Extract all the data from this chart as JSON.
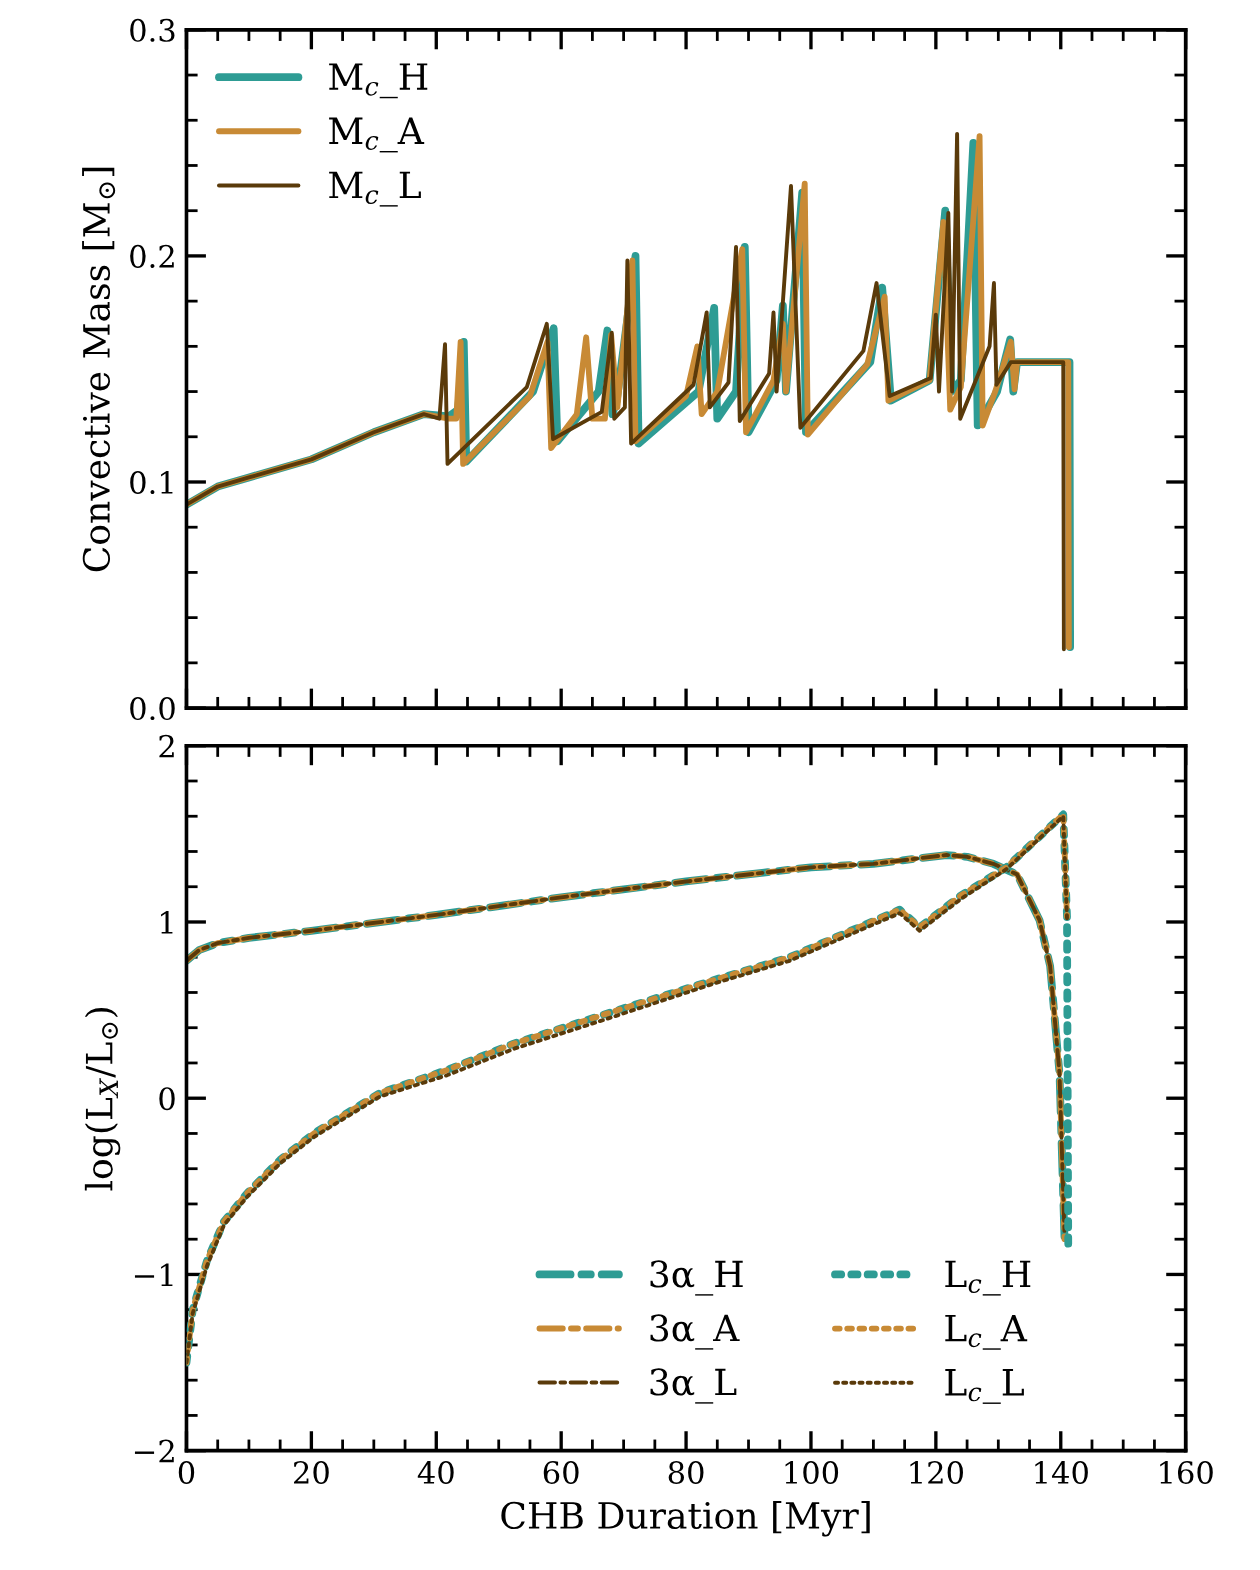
{
  "chart_data": [
    {
      "type": "line",
      "ylabel": "Convective Mass [M$_{⊙}$]",
      "xlim": [
        0,
        160
      ],
      "ylim": [
        0,
        0.3
      ],
      "xticks": [
        0,
        20,
        40,
        60,
        80,
        100,
        120,
        140,
        160
      ],
      "yticks": [
        {
          "value": 0,
          "label": "0.0"
        },
        0.1,
        0.2,
        0.3
      ],
      "tick_labels": "y",
      "legend": "top left",
      "grid": false,
      "line_style": "solid",
      "series": [
        {
          "name": "M$_{c}$_H",
          "color": "#2e9c94",
          "x": [
            0,
            5,
            10,
            20,
            30,
            38,
            42,
            43.5,
            44.4,
            44.8,
            55.5,
            58.8,
            59.4,
            66,
            67.4,
            68.2,
            68.9,
            71.9,
            72.4,
            82,
            84.5,
            85,
            88,
            89.4,
            90,
            94.5,
            95.5,
            96,
            98.6,
            99.2,
            109.5,
            111.4,
            112.8,
            119,
            121.5,
            122.5,
            124,
            126,
            126.7,
            129.8,
            131.9,
            132.4,
            133,
            141.4,
            141.5
          ],
          "values": [
            0.09,
            0.098,
            0.102,
            0.11,
            0.122,
            0.13,
            0.129,
            0.132,
            0.162,
            0.109,
            0.14,
            0.168,
            0.118,
            0.14,
            0.167,
            0.13,
            0.136,
            0.2,
            0.117,
            0.14,
            0.177,
            0.128,
            0.14,
            0.204,
            0.122,
            0.145,
            0.178,
            0.14,
            0.228,
            0.122,
            0.153,
            0.186,
            0.136,
            0.145,
            0.22,
            0.14,
            0.145,
            0.25,
            0.125,
            0.14,
            0.163,
            0.14,
            0.153,
            0.153,
            0.027
          ]
        },
        {
          "name": "M$_{c}$_A",
          "color": "#c88a35",
          "x": [
            0,
            5,
            10,
            20,
            30,
            38,
            42,
            43.2,
            43.9,
            44.3,
            55,
            57.8,
            58.4,
            62.5,
            64,
            65,
            67,
            68,
            69,
            71.4,
            71.9,
            80,
            81.8,
            82.5,
            85,
            89,
            89.6,
            94,
            95.5,
            96,
            99,
            99.5,
            109,
            111.8,
            112.4,
            119,
            121.2,
            122.3,
            124,
            127,
            127.5,
            129.5,
            132,
            132.6,
            133,
            141.2,
            141.3
          ],
          "values": [
            0.09,
            0.098,
            0.102,
            0.11,
            0.122,
            0.13,
            0.128,
            0.128,
            0.162,
            0.108,
            0.138,
            0.162,
            0.115,
            0.13,
            0.164,
            0.128,
            0.128,
            0.165,
            0.133,
            0.198,
            0.118,
            0.138,
            0.16,
            0.13,
            0.14,
            0.203,
            0.122,
            0.145,
            0.17,
            0.14,
            0.232,
            0.121,
            0.152,
            0.182,
            0.136,
            0.145,
            0.215,
            0.132,
            0.142,
            0.253,
            0.125,
            0.14,
            0.162,
            0.141,
            0.153,
            0.153,
            0.027
          ]
        },
        {
          "name": "M$_{c}$_L",
          "color": "#5a3a0a",
          "x": [
            0,
            5,
            10,
            20,
            30,
            38,
            40.5,
            41.4,
            41.8,
            54.5,
            57.7,
            58.7,
            66.5,
            68.1,
            68.5,
            70.2,
            70.6,
            71.2,
            81.2,
            83.3,
            83.8,
            86.8,
            88,
            88.6,
            93.3,
            94,
            94.5,
            96.8,
            98.3,
            108.4,
            110.5,
            112.6,
            119.2,
            120,
            120.5,
            122,
            122.6,
            123.4,
            123.9,
            128.6,
            129.3,
            129.7,
            132,
            140.4,
            140.5
          ],
          "values": [
            0.09,
            0.098,
            0.102,
            0.11,
            0.122,
            0.13,
            0.128,
            0.161,
            0.108,
            0.142,
            0.17,
            0.119,
            0.131,
            0.166,
            0.128,
            0.133,
            0.198,
            0.117,
            0.143,
            0.175,
            0.133,
            0.144,
            0.204,
            0.127,
            0.148,
            0.175,
            0.14,
            0.231,
            0.124,
            0.158,
            0.188,
            0.138,
            0.146,
            0.174,
            0.14,
            0.219,
            0.14,
            0.254,
            0.128,
            0.16,
            0.188,
            0.143,
            0.153,
            0.153,
            0.026
          ]
        }
      ]
    },
    {
      "type": "line",
      "xlabel": "CHB Duration [Myr]",
      "ylabel": "log(L$_{X}$/L$_{⊙}$)",
      "xlim": [
        0,
        160
      ],
      "ylim": [
        -2,
        2
      ],
      "xticks": [
        0,
        20,
        40,
        60,
        80,
        100,
        120,
        140,
        160
      ],
      "yticks": [
        {
          "value": -2,
          "label": "−2"
        },
        {
          "value": -1,
          "label": "−1"
        },
        0,
        1,
        2
      ],
      "legend": "bottom",
      "grid": false,
      "series": [
        {
          "name": "3α_H",
          "color": "#2e9c94",
          "line_style": "dashdot",
          "x": [
            0,
            2,
            5,
            10,
            20,
            40,
            60,
            80,
            100,
            110,
            121.7,
            125,
            129.2,
            133,
            136.6,
            138.3,
            139.8,
            140.6
          ],
          "values": [
            0.78,
            0.84,
            0.88,
            0.91,
            0.95,
            1.04,
            1.14,
            1.23,
            1.31,
            1.33,
            1.38,
            1.37,
            1.33,
            1.27,
            1.01,
            0.75,
            0.14,
            -0.8
          ]
        },
        {
          "name": "3α_A",
          "color": "#c88a35",
          "line_style": "dashdot",
          "x": [
            0,
            2,
            5,
            10,
            20,
            40,
            60,
            80,
            100,
            110,
            121.7,
            125,
            129.2,
            133,
            136.6,
            138.3,
            139.8,
            140.6
          ],
          "values": [
            0.78,
            0.84,
            0.88,
            0.91,
            0.95,
            1.04,
            1.14,
            1.23,
            1.31,
            1.33,
            1.38,
            1.37,
            1.33,
            1.27,
            1.01,
            0.75,
            0.14,
            -0.8
          ]
        },
        {
          "name": "3α_L",
          "color": "#5a3a0a",
          "line_style": "dashdot",
          "x": [
            0,
            2,
            5,
            10,
            20,
            40,
            60,
            80,
            100,
            110,
            121.7,
            125,
            129.2,
            133,
            136.6,
            138.3,
            139.8,
            140.6
          ],
          "values": [
            0.78,
            0.84,
            0.88,
            0.91,
            0.95,
            1.04,
            1.14,
            1.23,
            1.31,
            1.33,
            1.38,
            1.37,
            1.33,
            1.27,
            1.01,
            0.75,
            0.14,
            -0.77
          ]
        },
        {
          "name": "L$_{c}$_H",
          "color": "#2e9c94",
          "line_style": "dotted",
          "x": [
            0,
            1,
            3.3,
            6,
            9.7,
            15,
            20.4,
            31,
            41.7,
            52.4,
            67.3,
            84.4,
            96.6,
            105.7,
            114.2,
            117.4,
            124,
            131.3,
            140.4,
            141,
            141.2
          ],
          "values": [
            -1.5,
            -1.2,
            -0.92,
            -0.7,
            -0.54,
            -0.35,
            -0.2,
            0.03,
            0.16,
            0.31,
            0.48,
            0.67,
            0.8,
            0.94,
            1.07,
            0.97,
            1.15,
            1.31,
            1.61,
            1.03,
            -0.85
          ]
        },
        {
          "name": "L$_{c}$_A",
          "color": "#c88a35",
          "line_style": "dotted",
          "x": [
            0,
            1,
            3.3,
            6,
            9.7,
            15,
            20.4,
            31,
            41.7,
            52.4,
            67.3,
            84.4,
            96.6,
            105.7,
            114.2,
            117.4,
            124,
            131.3,
            140.4,
            141
          ],
          "values": [
            -1.5,
            -1.2,
            -0.92,
            -0.7,
            -0.54,
            -0.35,
            -0.2,
            0.03,
            0.16,
            0.31,
            0.48,
            0.67,
            0.8,
            0.94,
            1.07,
            0.97,
            1.15,
            1.31,
            1.61,
            1.03
          ]
        },
        {
          "name": "L$_{c}$_L",
          "color": "#5a3a0a",
          "line_style": "dotted",
          "x": [
            0,
            1,
            3.3,
            6,
            9.7,
            15,
            20.4,
            31,
            41.7,
            52.4,
            67.3,
            84.4,
            96.6,
            105.7,
            114.2,
            117.4,
            124,
            131.3,
            140.4,
            141
          ],
          "values": [
            -1.5,
            -1.22,
            -0.95,
            -0.72,
            -0.56,
            -0.37,
            -0.22,
            0.01,
            0.13,
            0.28,
            0.45,
            0.65,
            0.78,
            0.92,
            1.05,
            0.95,
            1.13,
            1.3,
            1.6,
            1.02
          ]
        }
      ]
    }
  ]
}
